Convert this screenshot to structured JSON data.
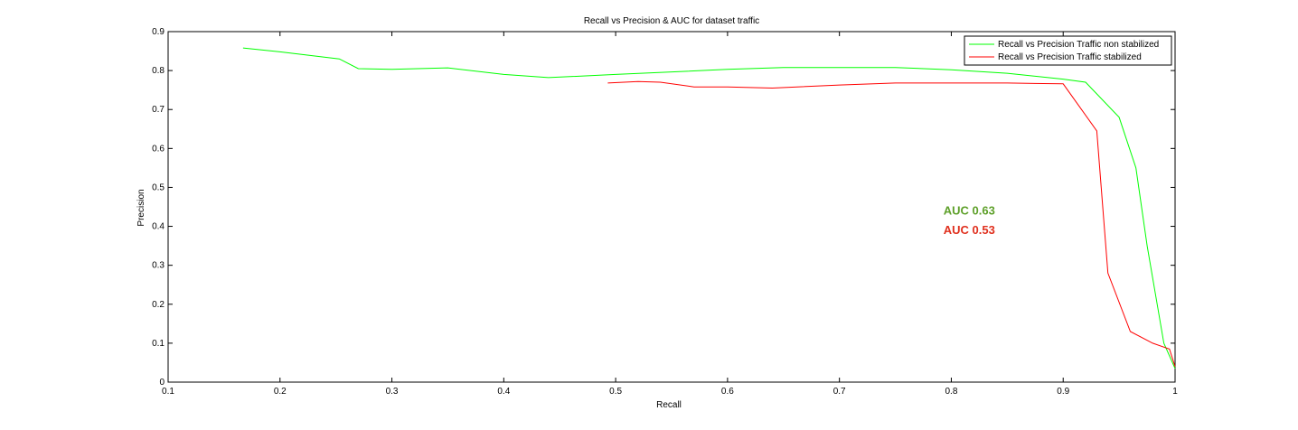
{
  "chart_data": {
    "type": "line",
    "title": "Recall vs Precision & AUC for dataset traffic",
    "xlabel": "Recall",
    "ylabel": "Precision",
    "xlim": [
      0.1,
      1.0
    ],
    "ylim": [
      0,
      0.9
    ],
    "xticks": [
      "0.1",
      "0.2",
      "0.3",
      "0.4",
      "0.5",
      "0.6",
      "0.7",
      "0.8",
      "0.9",
      "1"
    ],
    "yticks": [
      "0",
      "0.1",
      "0.2",
      "0.3",
      "0.4",
      "0.5",
      "0.6",
      "0.7",
      "0.8",
      "0.9"
    ],
    "grid": false,
    "legend_position": "top-right",
    "series": [
      {
        "name": "Recall vs Precision Traffic non stabilized",
        "color": "#00ff00",
        "x": [
          0.167,
          0.2,
          0.253,
          0.27,
          0.3,
          0.35,
          0.4,
          0.44,
          0.5,
          0.6,
          0.65,
          0.7,
          0.75,
          0.8,
          0.85,
          0.9,
          0.92,
          0.95,
          0.965,
          0.975,
          0.99,
          1.0
        ],
        "y": [
          0.858,
          0.848,
          0.83,
          0.805,
          0.803,
          0.807,
          0.79,
          0.782,
          0.79,
          0.803,
          0.808,
          0.808,
          0.808,
          0.802,
          0.793,
          0.778,
          0.77,
          0.68,
          0.55,
          0.35,
          0.1,
          0.035
        ]
      },
      {
        "name": "Recall vs Precision Traffic stabilized",
        "color": "#ff0000",
        "x": [
          0.493,
          0.52,
          0.54,
          0.57,
          0.6,
          0.64,
          0.7,
          0.75,
          0.8,
          0.85,
          0.9,
          0.93,
          0.94,
          0.96,
          0.98,
          0.995,
          1.0
        ],
        "y": [
          0.768,
          0.772,
          0.77,
          0.758,
          0.758,
          0.755,
          0.763,
          0.768,
          0.768,
          0.768,
          0.766,
          0.645,
          0.28,
          0.13,
          0.1,
          0.085,
          0.04
        ]
      }
    ],
    "annotations": [
      {
        "text": "AUC 0.63",
        "x": 0.793,
        "y": 0.43,
        "color": "#5ea02a"
      },
      {
        "text": "AUC 0.53",
        "x": 0.793,
        "y": 0.38,
        "color": "#e0301e"
      }
    ]
  }
}
